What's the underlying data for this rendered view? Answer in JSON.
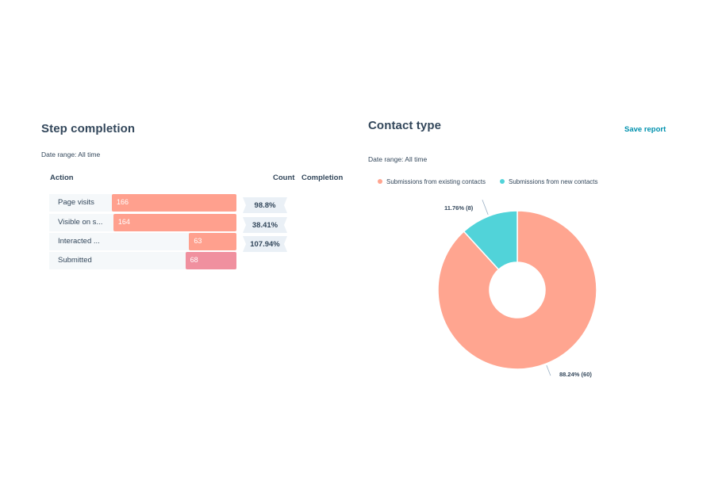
{
  "step_completion": {
    "title": "Step completion",
    "date_range": "Date range: All time",
    "headers": {
      "action": "Action",
      "count": "Count",
      "completion": "Completion"
    },
    "colors": {
      "bar_primary": "#ffa08e",
      "bar_secondary": "#f0909f",
      "row_bg": "#f5f8fa",
      "chevron": "#eaf0f6"
    },
    "rows": [
      {
        "label": "Page visits",
        "count": "166"
      },
      {
        "label": "Visible on s...",
        "count": "164"
      },
      {
        "label": "Interacted ...",
        "count": "63"
      },
      {
        "label": "Submitted",
        "count": "68"
      }
    ],
    "completions": [
      "98.8%",
      "38.41%",
      "107.94%"
    ]
  },
  "contact_type": {
    "title": "Contact type",
    "save_label": "Save report",
    "date_range": "Date range: All time",
    "legend": [
      {
        "label": "Submissions from existing contacts",
        "color": "#ffa590"
      },
      {
        "label": "Submissions from new contacts",
        "color": "#51d3d9"
      }
    ],
    "slice_labels": {
      "existing": "88.24% (60)",
      "new": "11.76% (8)"
    }
  },
  "chart_data": [
    {
      "type": "bar",
      "title": "Step completion",
      "categories": [
        "Page visits",
        "Visible on s...",
        "Interacted ...",
        "Submitted"
      ],
      "values": [
        166,
        164,
        63,
        68
      ],
      "completion_percent": [
        "98.8%",
        "38.41%",
        "107.94%"
      ],
      "orientation": "horizontal"
    },
    {
      "type": "pie",
      "title": "Contact type",
      "categories": [
        "Submissions from existing contacts",
        "Submissions from new contacts"
      ],
      "values": [
        60,
        8
      ],
      "percent": [
        88.24,
        11.76
      ],
      "colors": [
        "#ffa590",
        "#51d3d9"
      ],
      "legend": "top"
    }
  ]
}
